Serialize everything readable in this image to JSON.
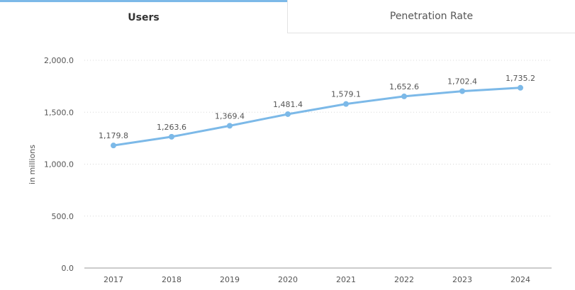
{
  "tabs": [
    {
      "label": "Users",
      "active": true
    },
    {
      "label": "Penetration Rate",
      "active": false
    }
  ],
  "chart_data": {
    "type": "line",
    "categories": [
      "2017",
      "2018",
      "2019",
      "2020",
      "2021",
      "2022",
      "2023",
      "2024"
    ],
    "values": [
      1179.8,
      1263.6,
      1369.4,
      1481.4,
      1579.1,
      1652.6,
      1702.4,
      1735.2
    ],
    "data_labels": [
      "1,179.8",
      "1,263.6",
      "1,369.4",
      "1,481.4",
      "1,579.1",
      "1,652.6",
      "1,702.4",
      "1,735.2"
    ],
    "ylabel": "in millions",
    "ylim": [
      0,
      2000
    ],
    "yticks": [
      0,
      500,
      1000,
      1500,
      2000
    ],
    "ytick_labels": [
      "0.0",
      "500.0",
      "1,000.0",
      "1,500.0",
      "2,000.0"
    ],
    "grid": true,
    "line_color": "#7cb9e8"
  }
}
